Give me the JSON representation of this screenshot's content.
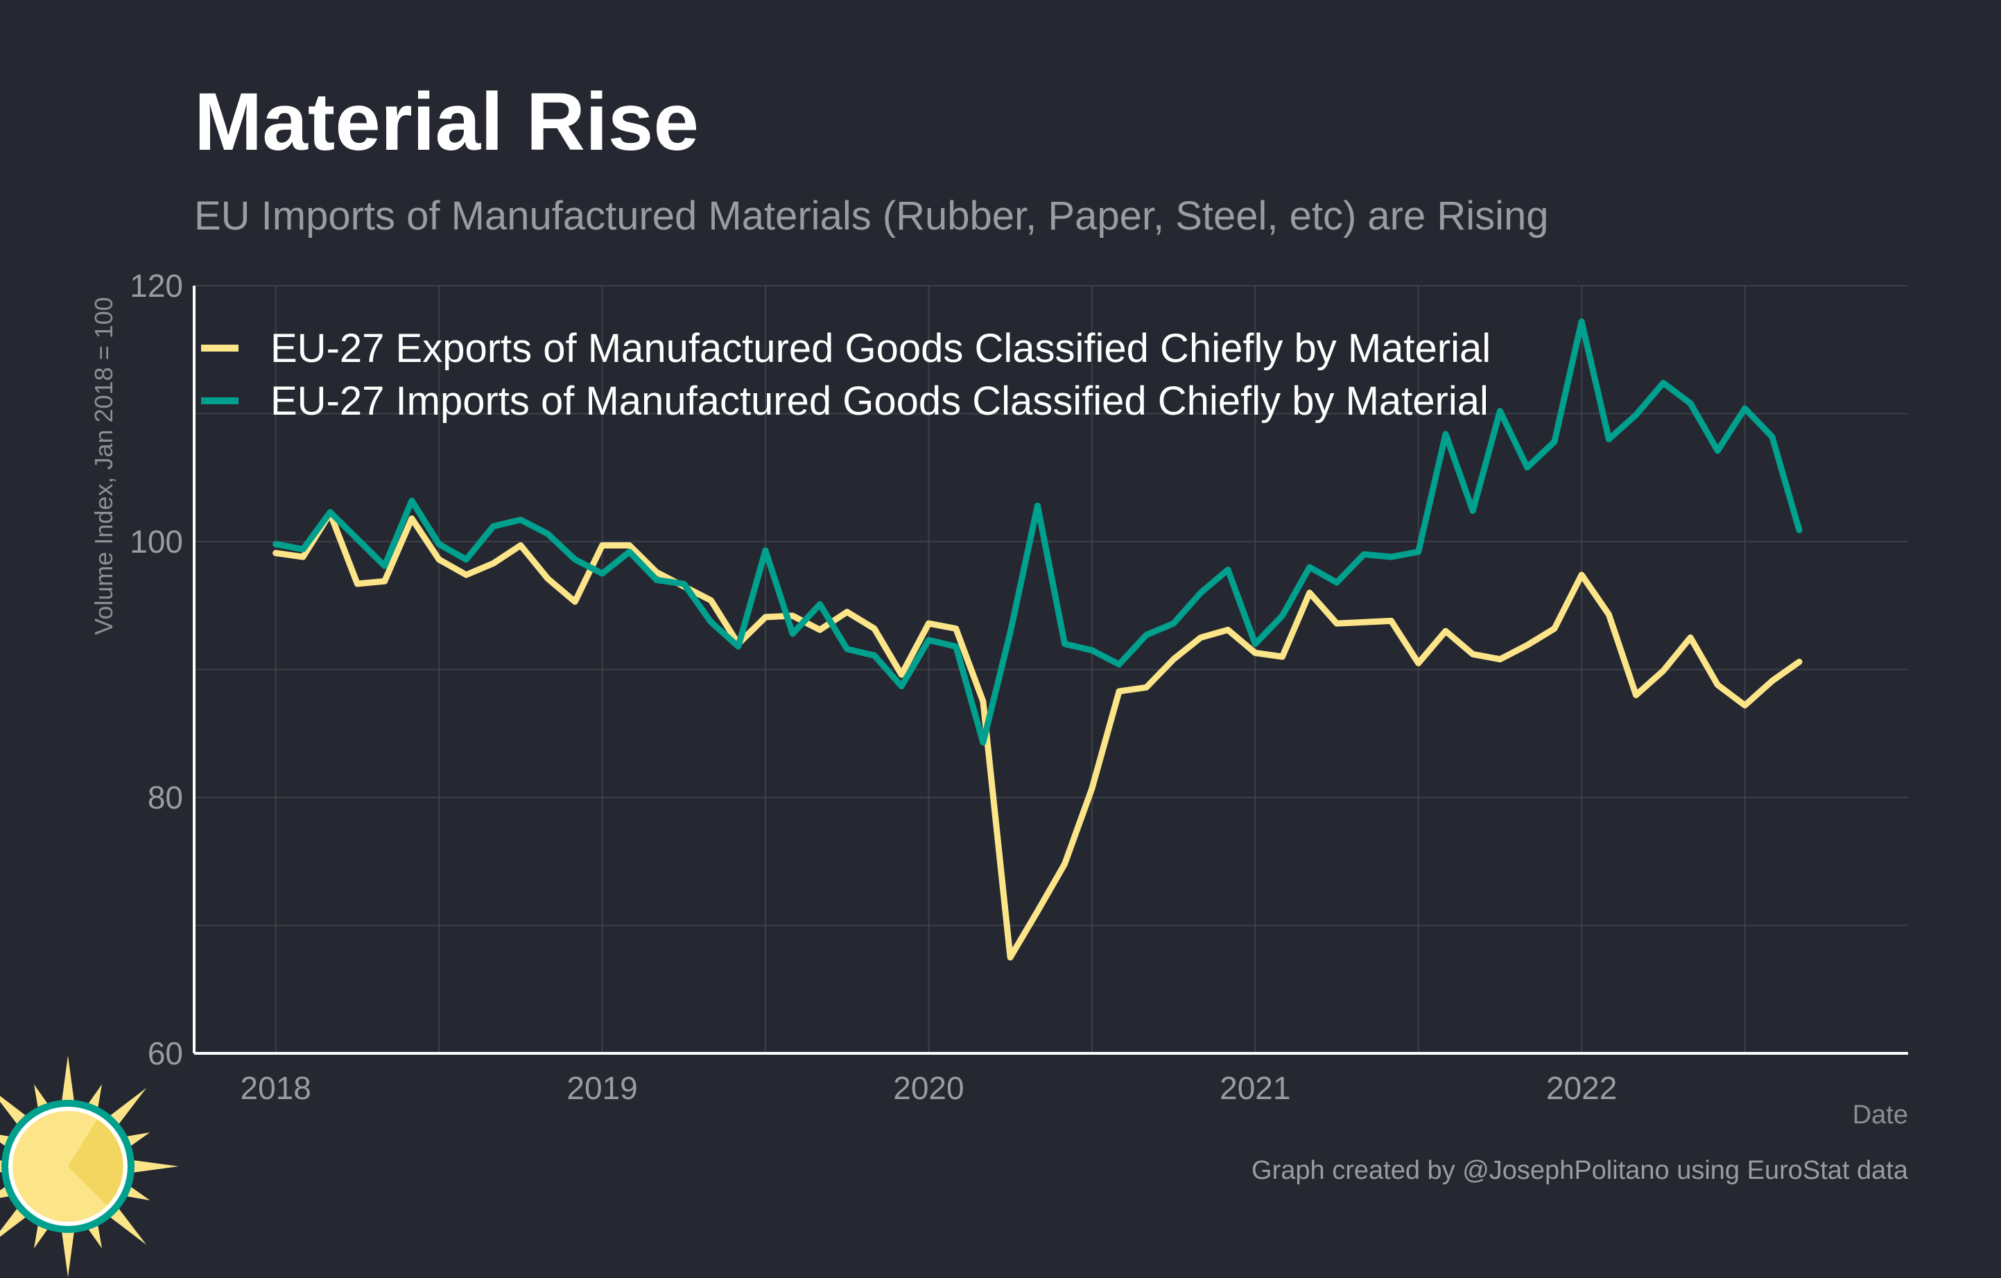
{
  "header": {
    "title": "Material Rise",
    "subtitle": "EU Imports of Manufactured Materials (Rubber, Paper, Steel, etc) are Rising"
  },
  "footer": {
    "credit": "Graph created by @JosephPolitano using EuroStat data"
  },
  "colors": {
    "background": "#252830",
    "exports": "#fce589",
    "imports": "#00a08e",
    "grid": "#3d4048",
    "axis": "#ffffff"
  },
  "logo": {
    "icon": "sun-logo-icon"
  },
  "chart_data": {
    "type": "line",
    "xlabel": "Date",
    "ylabel": "Volume Index, Jan 2018 = 100",
    "ylim": [
      60,
      120
    ],
    "yticks": [
      60,
      80,
      100,
      120
    ],
    "xlim": [
      "2017-10",
      "2023-01"
    ],
    "xticks": [
      "2018",
      "2019",
      "2020",
      "2021",
      "2022"
    ],
    "grid": true,
    "legend_position": "top-left",
    "series": [
      {
        "name": "EU-27 Exports of Manufactured Goods Classified Chiefly by Material",
        "color": "#fce589",
        "start": "2018-01",
        "values": [
          99.1,
          98.8,
          102.2,
          96.7,
          96.9,
          101.8,
          98.6,
          97.4,
          98.3,
          99.7,
          97.1,
          95.3,
          99.7,
          99.7,
          97.6,
          96.5,
          95.4,
          92.0,
          94.1,
          94.2,
          93.1,
          94.5,
          93.2,
          89.6,
          93.6,
          93.2,
          87.5,
          67.5,
          71.1,
          74.8,
          80.7,
          88.3,
          88.6,
          90.8,
          92.5,
          93.1,
          91.3,
          91.0,
          96.0,
          93.6,
          93.7,
          93.8,
          90.5,
          93.0,
          91.2,
          90.8,
          91.9,
          93.2,
          97.4,
          94.3,
          88.0,
          89.9,
          92.5,
          88.8,
          87.2,
          89.1,
          90.6
        ]
      },
      {
        "name": "EU-27 Imports of Manufactured Goods Classified Chiefly by Material",
        "color": "#00a08e",
        "start": "2018-01",
        "values": [
          99.8,
          99.4,
          102.3,
          100.2,
          98.1,
          103.2,
          99.8,
          98.6,
          101.2,
          101.7,
          100.6,
          98.6,
          97.5,
          99.2,
          97.0,
          96.7,
          93.7,
          91.8,
          99.3,
          92.8,
          95.1,
          91.6,
          91.1,
          88.7,
          92.3,
          91.8,
          84.3,
          92.9,
          102.8,
          92.0,
          91.5,
          90.4,
          92.7,
          93.6,
          96.0,
          97.8,
          92.0,
          94.2,
          98.0,
          96.8,
          99.0,
          98.8,
          99.2,
          108.4,
          102.4,
          110.2,
          105.8,
          107.8,
          117.2,
          108.0,
          109.9,
          112.4,
          110.8,
          107.1,
          110.4,
          108.2,
          100.9
        ]
      }
    ]
  }
}
